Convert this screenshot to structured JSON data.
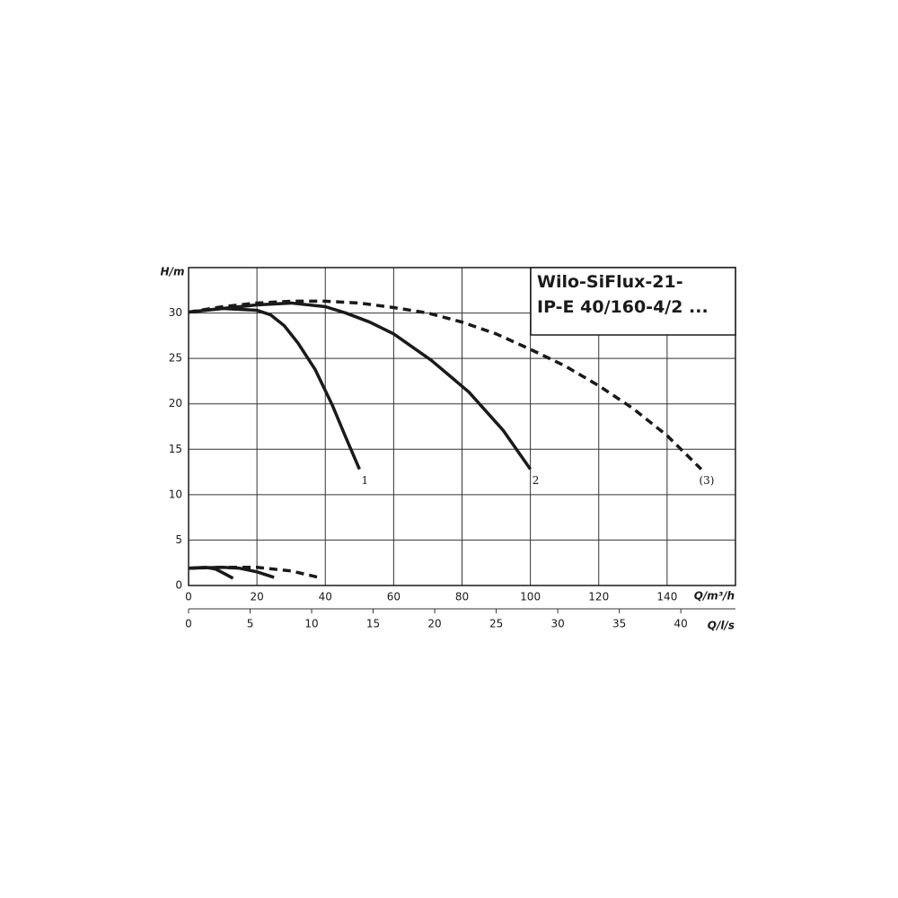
{
  "chart_data": {
    "type": "line",
    "title": [
      "Wilo-SiFlux-21-",
      "IP-E 40/160-4/2 ..."
    ],
    "y_label": "H/m",
    "x_label": "Q/m³/h",
    "x2_label": "Q/l/s",
    "xlim": [
      0,
      160
    ],
    "xticks": [
      0,
      20,
      40,
      60,
      80,
      100,
      120,
      140
    ],
    "x2lim": [
      0,
      44.44
    ],
    "x2ticks": [
      0,
      5,
      10,
      15,
      20,
      25,
      30,
      35,
      40
    ],
    "ylim": [
      0,
      35
    ],
    "yticks": [
      0,
      5,
      10,
      15,
      20,
      25,
      30
    ],
    "grid": true,
    "color": "#1a1a1a",
    "series": [
      {
        "name": "1",
        "style": "solid",
        "x": [
          0,
          10,
          20,
          24,
          28,
          32,
          37,
          42,
          46,
          50
        ],
        "values": [
          30.1,
          30.5,
          30.3,
          29.8,
          28.6,
          26.7,
          23.8,
          19.9,
          16.3,
          12.8
        ]
      },
      {
        "name": "2",
        "style": "solid",
        "x": [
          0,
          20,
          30,
          40,
          46,
          53,
          60,
          71,
          82,
          92,
          100
        ],
        "values": [
          30.1,
          30.9,
          31.1,
          30.7,
          30,
          29,
          27.7,
          24.8,
          21.3,
          17.1,
          12.8
        ]
      },
      {
        "name": "(3)",
        "style": "dashed",
        "x": [
          0,
          10,
          20,
          30,
          40,
          50,
          60,
          70,
          80,
          90,
          100,
          110,
          120,
          130,
          140,
          150
        ],
        "values": [
          30.1,
          30.7,
          31.1,
          31.3,
          31.3,
          31.1,
          30.6,
          30,
          29,
          27.7,
          26,
          24.2,
          22,
          19.5,
          16.5,
          12.8
        ]
      },
      {
        "style": "solid",
        "x": [
          0,
          5,
          8,
          10,
          13
        ],
        "values": [
          1.9,
          2,
          1.8,
          1.4,
          0.8
        ]
      },
      {
        "style": "solid",
        "x": [
          0,
          10,
          15,
          20,
          25
        ],
        "values": [
          1.9,
          2,
          1.9,
          1.5,
          0.9
        ]
      },
      {
        "style": "dashed",
        "x": [
          0,
          10,
          20,
          30,
          38
        ],
        "values": [
          1.9,
          2,
          2,
          1.6,
          0.9
        ]
      }
    ]
  }
}
